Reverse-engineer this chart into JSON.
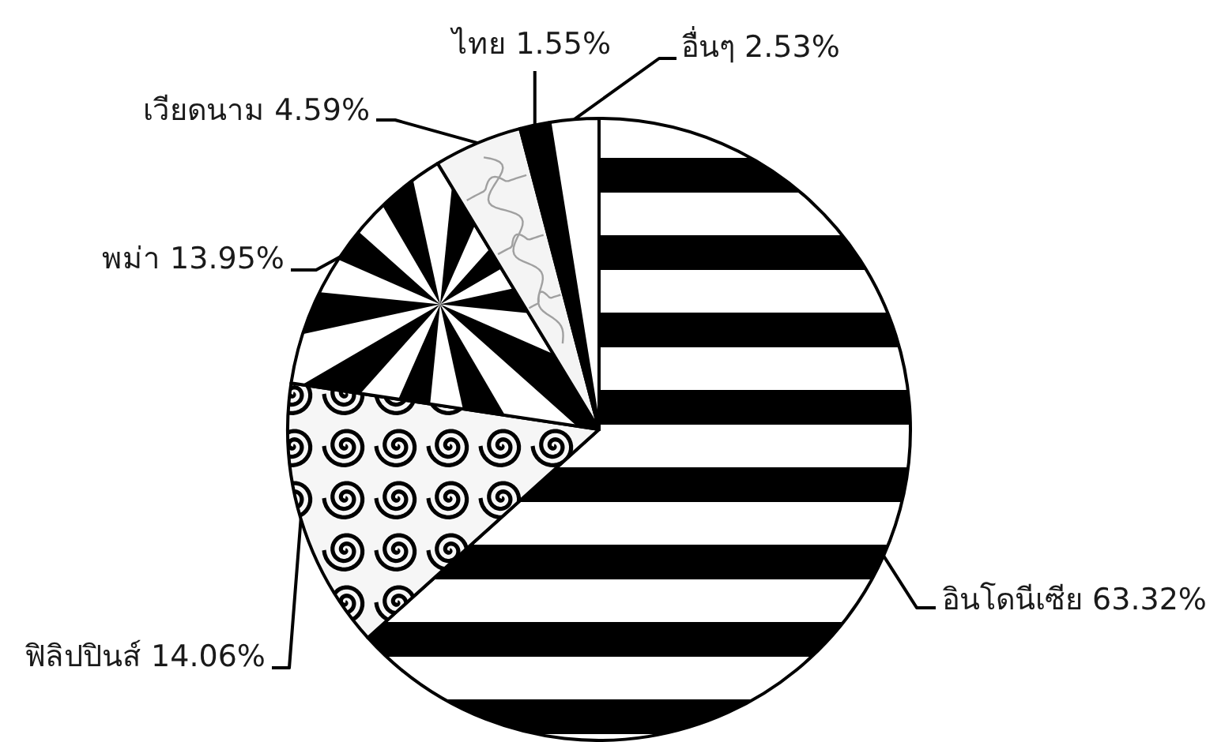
{
  "chart_data": {
    "type": "pie",
    "categories": [
      "อินโดนีเซีย",
      "ฟิลิปปินส์",
      "พม่า",
      "เวียดนาม",
      "ไทย",
      "อื่นๆ"
    ],
    "values": [
      63.32,
      14.06,
      13.95,
      4.59,
      1.55,
      2.53
    ],
    "colors": [
      "#000000",
      "#000000",
      "#000000",
      "#f4f4f4",
      "#000000",
      "#ffffff"
    ],
    "value_labels": [
      "63.32%",
      "14.06%",
      "13.95%",
      "4.59%",
      "1.55%",
      "2.53%"
    ]
  }
}
